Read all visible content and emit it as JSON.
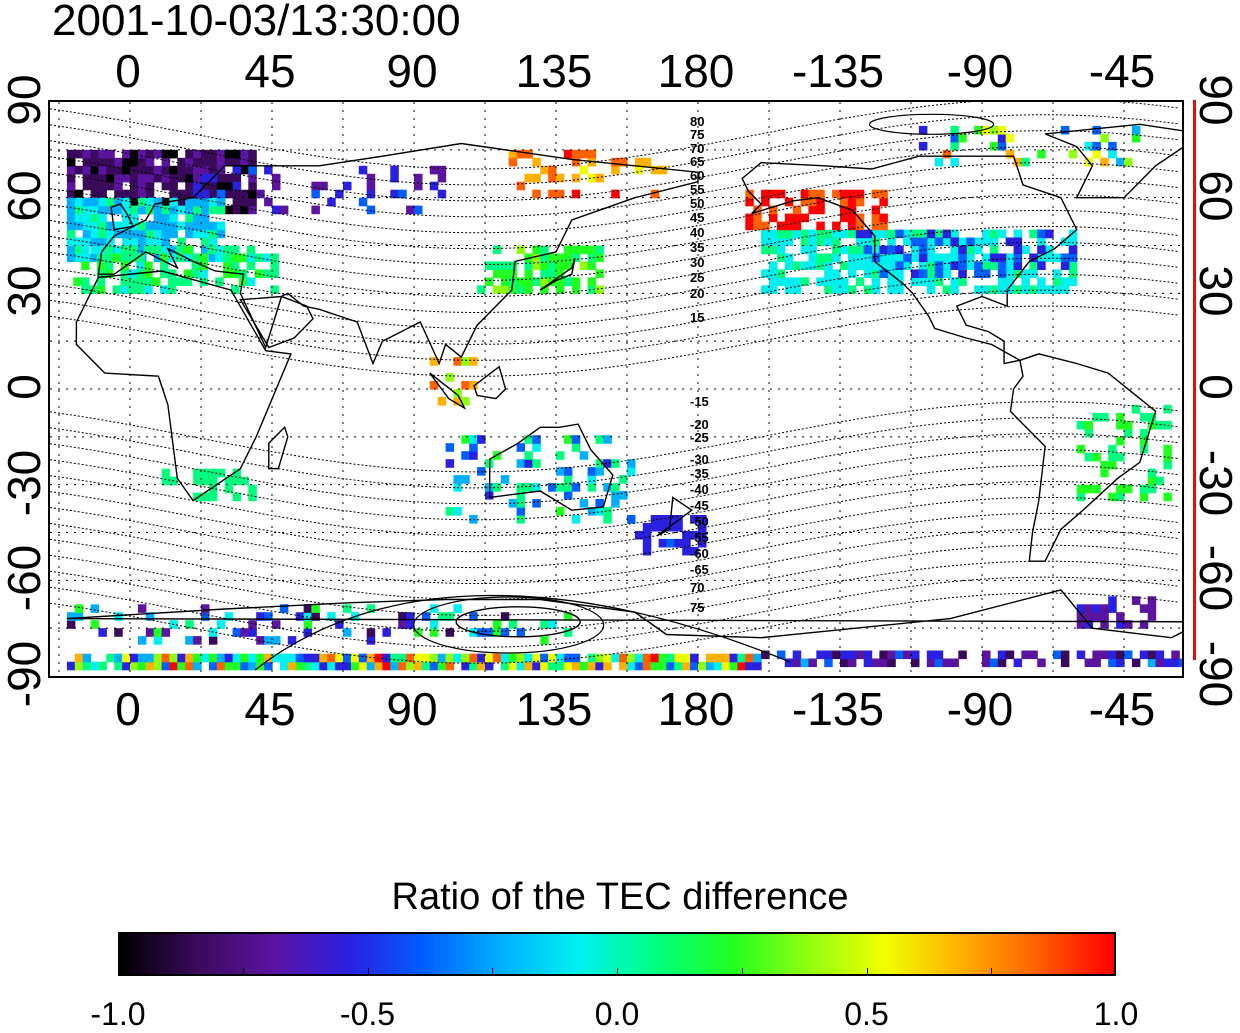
{
  "timestamp": "2001-10-03/13:30:00",
  "top_lon_ticks": [
    "0",
    "45",
    "90",
    "135",
    "180",
    "-135",
    "-90",
    "-45"
  ],
  "bottom_lon_ticks": [
    "0",
    "45",
    "90",
    "135",
    "180",
    "-135",
    "-90",
    "-45"
  ],
  "left_lat_ticks": [
    "90",
    "60",
    "30",
    "0",
    "-30",
    "-60",
    "-90"
  ],
  "right_lat_ticks": [
    "90",
    "60",
    "30",
    "0",
    "-30",
    "-60",
    "-90"
  ],
  "contour_labels_north": [
    "80",
    "75",
    "70",
    "65",
    "60",
    "55",
    "50",
    "45",
    "40",
    "35",
    "30",
    "25",
    "20",
    "15"
  ],
  "contour_labels_south": [
    "-15",
    "-20",
    "-25",
    "-30",
    "-35",
    "-40",
    "-45",
    "-50",
    "-55",
    "-60",
    "-65",
    "70",
    "75"
  ],
  "colorbar": {
    "title": "Ratio of the TEC difference",
    "ticks": [
      "-1.0",
      "-0.5",
      "0.0",
      "0.5",
      "1.0"
    ],
    "range": [
      -1.0,
      1.0
    ],
    "colors": [
      "#000000",
      "#3a0a5a",
      "#5a14a0",
      "#2a20e0",
      "#0060ff",
      "#00b0ff",
      "#00f0f0",
      "#00ff80",
      "#20ff20",
      "#90ff10",
      "#f0ff00",
      "#ffb000",
      "#ff6000",
      "#ff0000"
    ]
  },
  "colors": {
    "frame": "#000000",
    "right_axis_line": "#e01010",
    "grid": "#000000"
  }
}
